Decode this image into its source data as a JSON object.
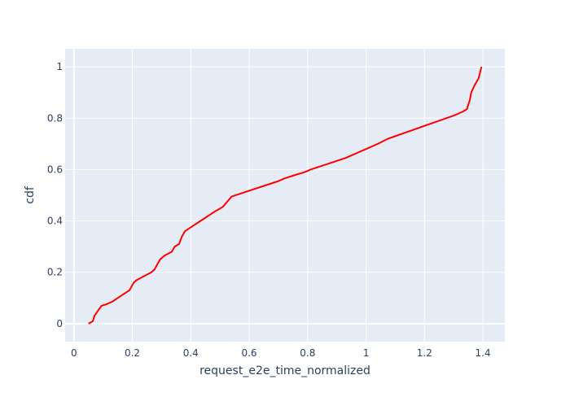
{
  "chart_data": {
    "type": "line",
    "title": "",
    "xlabel": "request_e2e_time_normalized",
    "ylabel": "cdf",
    "xlim": [
      -0.03,
      1.475
    ],
    "ylim": [
      -0.07,
      1.07
    ],
    "x_ticks": [
      0,
      0.2,
      0.4,
      0.6,
      0.8,
      1,
      1.2,
      1.4
    ],
    "x_tick_labels": [
      "0",
      "0.2",
      "0.4",
      "0.6",
      "0.8",
      "1",
      "1.2",
      "1.4"
    ],
    "y_ticks": [
      0,
      0.2,
      0.4,
      0.6,
      0.8,
      1
    ],
    "y_tick_labels": [
      "0",
      "0.2",
      "0.4",
      "0.6",
      "0.8",
      "1"
    ],
    "grid": true,
    "background_color": "#e5ecf6",
    "grid_color": "#ffffff",
    "series": [
      {
        "color": "#ff0000",
        "x": [
          0.05,
          0.065,
          0.07,
          0.085,
          0.095,
          0.11,
          0.13,
          0.15,
          0.17,
          0.19,
          0.205,
          0.215,
          0.24,
          0.265,
          0.275,
          0.285,
          0.295,
          0.31,
          0.335,
          0.345,
          0.36,
          0.365,
          0.37,
          0.38,
          0.4,
          0.44,
          0.48,
          0.51,
          0.525,
          0.54,
          0.58,
          0.62,
          0.66,
          0.7,
          0.72,
          0.76,
          0.79,
          0.81,
          0.85,
          0.89,
          0.93,
          0.95,
          0.97,
          1.0,
          1.02,
          1.04,
          1.075,
          1.1,
          1.15,
          1.2,
          1.25,
          1.3,
          1.33,
          1.345,
          1.355,
          1.36,
          1.37,
          1.385,
          1.395
        ],
        "y": [
          0.0,
          0.01,
          0.03,
          0.055,
          0.07,
          0.075,
          0.085,
          0.1,
          0.115,
          0.13,
          0.16,
          0.17,
          0.185,
          0.2,
          0.21,
          0.23,
          0.25,
          0.265,
          0.28,
          0.3,
          0.31,
          0.325,
          0.34,
          0.36,
          0.375,
          0.405,
          0.435,
          0.455,
          0.475,
          0.495,
          0.51,
          0.525,
          0.54,
          0.555,
          0.565,
          0.58,
          0.59,
          0.6,
          0.615,
          0.63,
          0.645,
          0.655,
          0.665,
          0.68,
          0.69,
          0.7,
          0.72,
          0.73,
          0.75,
          0.77,
          0.79,
          0.81,
          0.825,
          0.835,
          0.87,
          0.9,
          0.925,
          0.955,
          1.0
        ]
      }
    ]
  }
}
